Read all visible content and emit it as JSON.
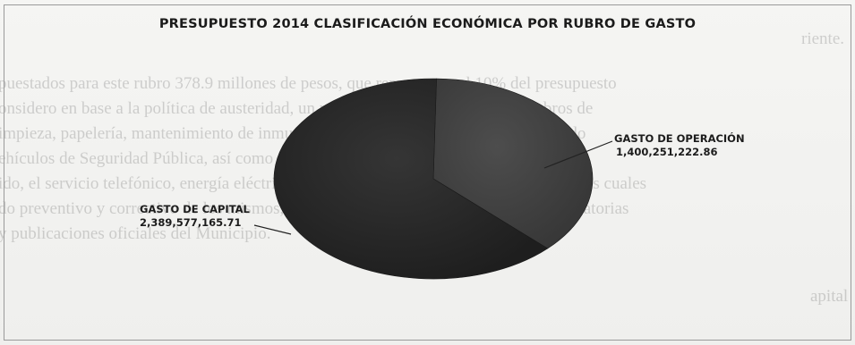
{
  "chart_data": {
    "type": "pie",
    "title": "PRESUPUESTO 2014 CLASIFICACIÓN ECONÓMICA POR RUBRO DE GASTO",
    "slices": [
      {
        "label": "GASTO DE OPERACIÓN",
        "value_text": "1,400,251,222.86",
        "value": 1400251222.86,
        "color": "#434343"
      },
      {
        "label": "GASTO DE CAPITAL",
        "value_text": "2,389,577,165.71",
        "value": 2389577165.71,
        "color": "#2c2c2c"
      }
    ],
    "legend": "none"
  },
  "background_text": [
    "riente.",
    "puestados para este rubro 378.9 millones de pesos, que representan el 10% del presupuesto",
    "onsidero en base a la política de austeridad, un mayor control del gasto en los rubros de",
    "impieza, papelería, mantenimiento de inmuebles, vehículos del Municipio, incluyendo",
    "ehículos de Seguridad Pública, así como servicios de comunicaciones. Dentro de este",
    "ido, el servicio telefónico, energía eléctrica, mantenimiento de edificios municipales, los cuales",
    "do preventivo y correctivo de los mismos, así como el gasto en publicación de convocatorias",
    "y publicaciones oficiales del Municipio.",
    "apital"
  ]
}
